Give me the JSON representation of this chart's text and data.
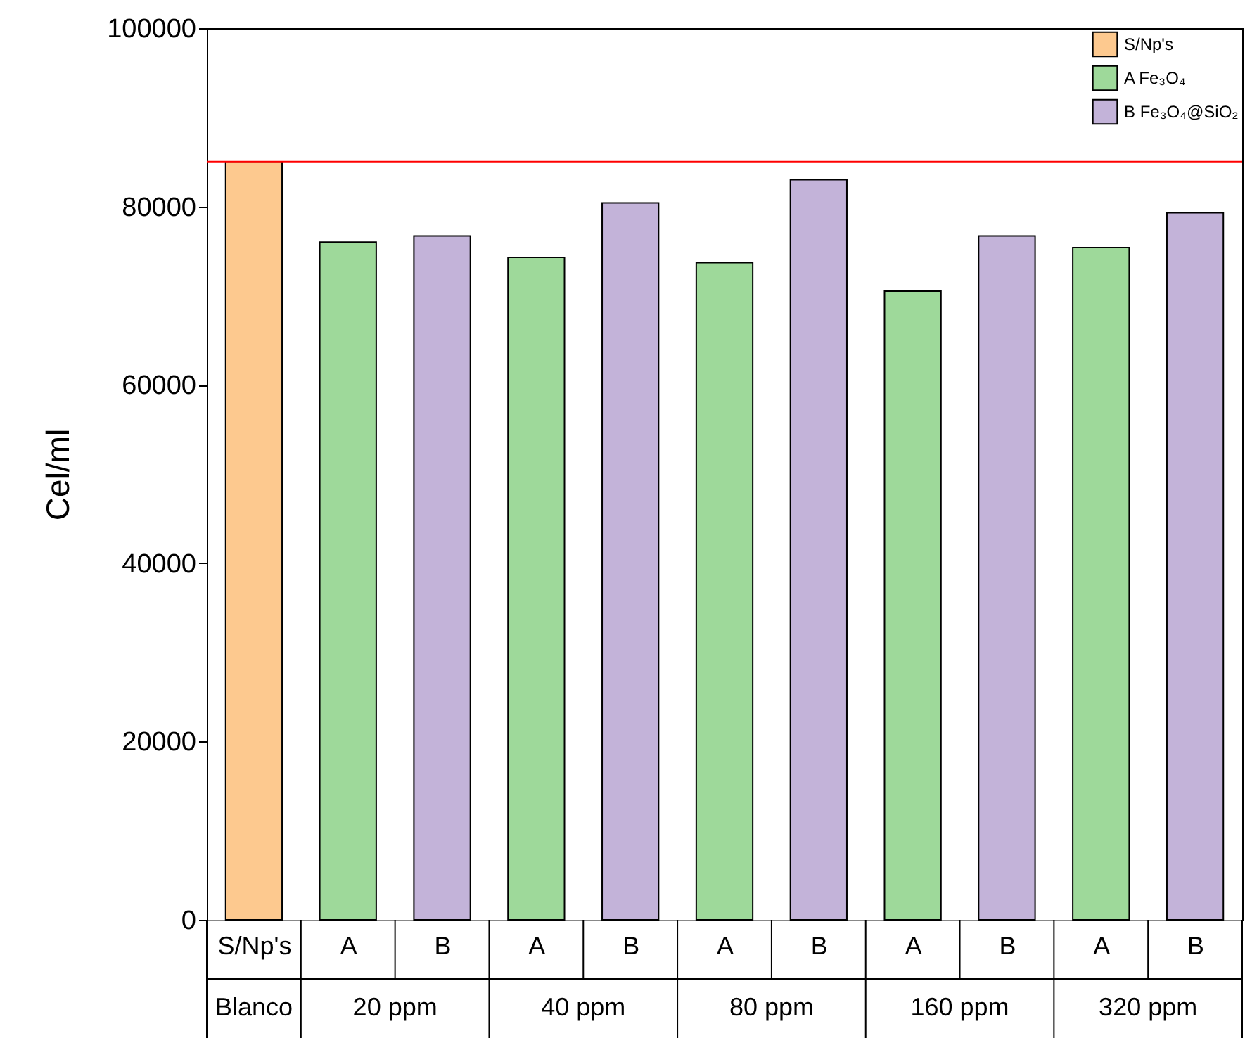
{
  "chart_data": {
    "type": "bar",
    "ylabel": "Cel/ml",
    "categories": [
      "S/Np's",
      "A",
      "B",
      "A",
      "B",
      "A",
      "B",
      "A",
      "B",
      "A",
      "B"
    ],
    "annotations": [
      "Blanco",
      "20 ppm",
      "40 ppm",
      "80 ppm",
      "160 ppm",
      "320 ppm"
    ],
    "series": [
      {
        "name": "S/Np's",
        "color": "#fdc98f",
        "values": [
          85000,
          null,
          null,
          null,
          null,
          null,
          null,
          null,
          null,
          null,
          null
        ]
      },
      {
        "name": "A Fe₃O₄",
        "color": "#9ed99a",
        "values": [
          null,
          76000,
          null,
          74300,
          null,
          73700,
          null,
          70500,
          null,
          75400,
          null
        ]
      },
      {
        "name": "B Fe₃O₄@SiO₂",
        "color": "#c3b3d9",
        "values": [
          null,
          null,
          76700,
          null,
          80400,
          null,
          83000,
          null,
          76700,
          null,
          79300
        ]
      }
    ],
    "ylim": [
      0,
      100000
    ],
    "yticks": [
      0,
      20000,
      40000,
      60000,
      80000,
      100000
    ],
    "ref_lines": [
      {
        "axis": "y",
        "value": 85000,
        "color": "#ff0000"
      }
    ],
    "legend": "top right",
    "grid": false
  }
}
